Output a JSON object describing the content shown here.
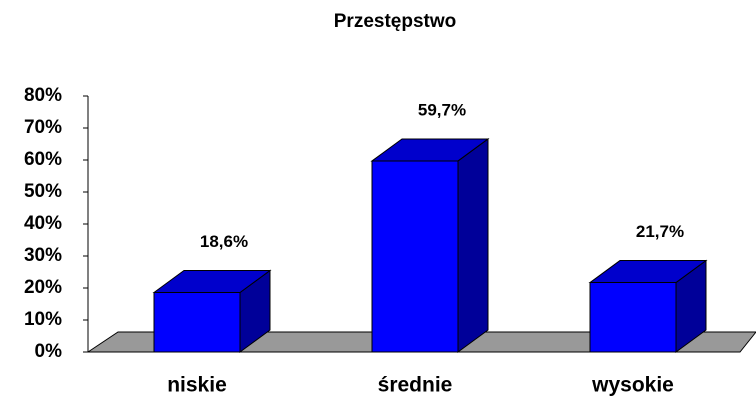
{
  "chart_data": {
    "type": "bar3d",
    "title": "Przestępstwo",
    "categories": [
      "niskie",
      "średnie",
      "wysokie"
    ],
    "values": [
      18.6,
      59.7,
      21.7
    ],
    "value_labels": [
      "18,6%",
      "59,7%",
      "21,7%"
    ],
    "color": "#0000ff",
    "ylim": [
      0,
      80
    ],
    "yticks": [
      {
        "value": 0,
        "label": "0%"
      },
      {
        "value": 10,
        "label": "10%"
      },
      {
        "value": 20,
        "label": "20%"
      },
      {
        "value": 30,
        "label": "30%"
      },
      {
        "value": 40,
        "label": "40%"
      },
      {
        "value": 50,
        "label": "50%"
      },
      {
        "value": 60,
        "label": "60%"
      },
      {
        "value": 70,
        "label": "70%"
      },
      {
        "value": 80,
        "label": "80%"
      }
    ]
  }
}
